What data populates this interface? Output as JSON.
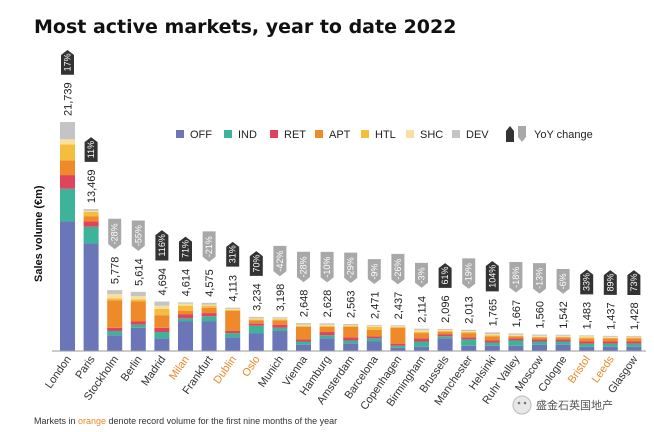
{
  "chart_data": {
    "type": "bar",
    "stacked": true,
    "title": "Most active markets, year to date 2022",
    "ylabel": "Sales volume (€m)",
    "yoy_label": "YoY change",
    "series_keys": [
      "OFF",
      "IND",
      "RET",
      "APT",
      "HTL",
      "SHC",
      "DEV"
    ],
    "series_colors": {
      "OFF": "#6a76b8",
      "IND": "#3db39a",
      "RET": "#e0435c",
      "APT": "#ef8a2b",
      "HTL": "#f5bd3c",
      "SHC": "#f9dfa0",
      "DEV": "#c4c4c4"
    },
    "up_color": "#333333",
    "down_color": "#a8a8a8",
    "record_color": "#e8892a",
    "markets": [
      {
        "name": "London",
        "total": "21,739",
        "value": 21739,
        "yoy": "17%",
        "dir": "up",
        "record": false,
        "breakdown": {
          "OFF": 12300,
          "IND": 3100,
          "RET": 1300,
          "APT": 1400,
          "HTL": 1500,
          "SHC": 500,
          "DEV": 1639
        }
      },
      {
        "name": "Paris",
        "total": "13,469",
        "value": 13469,
        "yoy": "11%",
        "dir": "up",
        "record": false,
        "breakdown": {
          "OFF": 10200,
          "IND": 1600,
          "RET": 500,
          "APT": 500,
          "HTL": 400,
          "SHC": 100,
          "DEV": 169
        }
      },
      {
        "name": "Stockholm",
        "total": "5,778",
        "value": 5778,
        "yoy": "-28%",
        "dir": "down",
        "record": false,
        "breakdown": {
          "OFF": 1500,
          "IND": 400,
          "RET": 300,
          "APT": 2600,
          "HTL": 200,
          "SHC": 400,
          "DEV": 378
        }
      },
      {
        "name": "Berlin",
        "total": "5,614",
        "value": 5614,
        "yoy": "-55%",
        "dir": "down",
        "record": false,
        "breakdown": {
          "OFF": 2200,
          "IND": 300,
          "RET": 300,
          "APT": 1900,
          "HTL": 200,
          "SHC": 300,
          "DEV": 414
        }
      },
      {
        "name": "Madrid",
        "total": "4,694",
        "value": 4694,
        "yoy": "116%",
        "dir": "up",
        "record": false,
        "breakdown": {
          "OFF": 1200,
          "IND": 600,
          "RET": 400,
          "APT": 1200,
          "HTL": 600,
          "SHC": 300,
          "DEV": 394
        }
      },
      {
        "name": "Milan",
        "total": "4,614",
        "value": 4614,
        "yoy": "71%",
        "dir": "up",
        "record": true,
        "breakdown": {
          "OFF": 2800,
          "IND": 300,
          "RET": 400,
          "APT": 300,
          "HTL": 500,
          "SHC": 200,
          "DEV": 114
        }
      },
      {
        "name": "Frankfurt",
        "total": "4,575",
        "value": 4575,
        "yoy": "-21%",
        "dir": "down",
        "record": false,
        "breakdown": {
          "OFF": 2800,
          "IND": 500,
          "RET": 300,
          "APT": 500,
          "HTL": 200,
          "SHC": 100,
          "DEV": 175
        }
      },
      {
        "name": "Dublin",
        "total": "4,113",
        "value": 4113,
        "yoy": "31%",
        "dir": "up",
        "record": true,
        "breakdown": {
          "OFF": 1300,
          "IND": 400,
          "RET": 200,
          "APT": 1900,
          "HTL": 100,
          "SHC": 100,
          "DEV": 113
        }
      },
      {
        "name": "Oslo",
        "total": "3,234",
        "value": 3234,
        "yoy": "70%",
        "dir": "up",
        "record": true,
        "breakdown": {
          "OFF": 1700,
          "IND": 700,
          "RET": 200,
          "APT": 300,
          "HTL": 100,
          "SHC": 100,
          "DEV": 134
        }
      },
      {
        "name": "Munich",
        "total": "3,198",
        "value": 3198,
        "yoy": "-42%",
        "dir": "down",
        "record": false,
        "breakdown": {
          "OFF": 1900,
          "IND": 300,
          "RET": 300,
          "APT": 400,
          "HTL": 100,
          "SHC": 100,
          "DEV": 98
        }
      },
      {
        "name": "Vienna",
        "total": "2,648",
        "value": 2648,
        "yoy": "-28%",
        "dir": "down",
        "record": false,
        "breakdown": {
          "OFF": 600,
          "IND": 300,
          "RET": 200,
          "APT": 1200,
          "HTL": 100,
          "SHC": 100,
          "DEV": 148
        }
      },
      {
        "name": "Hamburg",
        "total": "2,628",
        "value": 2628,
        "yoy": "-10%",
        "dir": "down",
        "record": false,
        "breakdown": {
          "OFF": 1200,
          "IND": 300,
          "RET": 300,
          "APT": 500,
          "HTL": 100,
          "SHC": 100,
          "DEV": 128
        }
      },
      {
        "name": "Amsterdam",
        "total": "2,563",
        "value": 2563,
        "yoy": "-29%",
        "dir": "down",
        "record": false,
        "breakdown": {
          "OFF": 700,
          "IND": 300,
          "RET": 300,
          "APT": 1000,
          "HTL": 100,
          "SHC": 50,
          "DEV": 113
        }
      },
      {
        "name": "Barcelona",
        "total": "2,471",
        "value": 2471,
        "yoy": "-9%",
        "dir": "down",
        "record": false,
        "breakdown": {
          "OFF": 900,
          "IND": 300,
          "RET": 200,
          "APT": 600,
          "HTL": 300,
          "SHC": 100,
          "DEV": 71
        }
      },
      {
        "name": "Copenhagen",
        "total": "2,437",
        "value": 2437,
        "yoy": "-26%",
        "dir": "down",
        "record": false,
        "breakdown": {
          "OFF": 300,
          "IND": 200,
          "RET": 200,
          "APT": 1500,
          "HTL": 100,
          "SHC": 50,
          "DEV": 87
        }
      },
      {
        "name": "Birmingham",
        "total": "2,114",
        "value": 2114,
        "yoy": "-3%",
        "dir": "down",
        "record": false,
        "breakdown": {
          "OFF": 400,
          "IND": 500,
          "RET": 300,
          "APT": 500,
          "HTL": 100,
          "SHC": 200,
          "DEV": 114
        }
      },
      {
        "name": "Brussels",
        "total": "2,096",
        "value": 2096,
        "yoy": "61%",
        "dir": "up",
        "record": false,
        "breakdown": {
          "OFF": 1200,
          "IND": 200,
          "RET": 200,
          "APT": 200,
          "HTL": 100,
          "SHC": 100,
          "DEV": 96
        }
      },
      {
        "name": "Manchester",
        "total": "2,013",
        "value": 2013,
        "yoy": "-19%",
        "dir": "down",
        "record": false,
        "breakdown": {
          "OFF": 500,
          "IND": 600,
          "RET": 200,
          "APT": 400,
          "HTL": 100,
          "SHC": 100,
          "DEV": 113
        }
      },
      {
        "name": "Helsinki",
        "total": "1,765",
        "value": 1765,
        "yoy": "104%",
        "dir": "up",
        "record": false,
        "breakdown": {
          "OFF": 500,
          "IND": 300,
          "RET": 200,
          "APT": 400,
          "HTL": 100,
          "SHC": 100,
          "DEV": 165
        }
      },
      {
        "name": "Ruhr Valley",
        "total": "1,667",
        "value": 1667,
        "yoy": "-18%",
        "dir": "down",
        "record": false,
        "breakdown": {
          "OFF": 500,
          "IND": 500,
          "RET": 200,
          "APT": 200,
          "HTL": 50,
          "SHC": 100,
          "DEV": 117
        }
      },
      {
        "name": "Moscow",
        "total": "1,560",
        "value": 1560,
        "yoy": "-13%",
        "dir": "down",
        "record": false,
        "breakdown": {
          "OFF": 600,
          "IND": 300,
          "RET": 200,
          "APT": 200,
          "HTL": 50,
          "SHC": 100,
          "DEV": 110
        }
      },
      {
        "name": "Cologne",
        "total": "1,542",
        "value": 1542,
        "yoy": "-6%",
        "dir": "down",
        "record": false,
        "breakdown": {
          "OFF": 600,
          "IND": 300,
          "RET": 200,
          "APT": 200,
          "HTL": 50,
          "SHC": 100,
          "DEV": 92
        }
      },
      {
        "name": "Bristol",
        "total": "1,483",
        "value": 1483,
        "yoy": "33%",
        "dir": "up",
        "record": true,
        "breakdown": {
          "OFF": 400,
          "IND": 300,
          "RET": 200,
          "APT": 300,
          "HTL": 100,
          "SHC": 100,
          "DEV": 83
        }
      },
      {
        "name": "Leeds",
        "total": "1,437",
        "value": 1437,
        "yoy": "89%",
        "dir": "up",
        "record": true,
        "breakdown": {
          "OFF": 400,
          "IND": 300,
          "RET": 200,
          "APT": 300,
          "HTL": 50,
          "SHC": 100,
          "DEV": 87
        }
      },
      {
        "name": "Glasgow",
        "total": "1,428",
        "value": 1428,
        "yoy": "73%",
        "dir": "up",
        "record": false,
        "breakdown": {
          "OFF": 400,
          "IND": 300,
          "RET": 200,
          "APT": 300,
          "HTL": 100,
          "SHC": 50,
          "DEV": 78
        }
      }
    ],
    "footnote": {
      "before": "Markets in ",
      "highlight": "orange",
      "after": " denote record volume for the first nine months of the year"
    },
    "watermark": "盛金石英国地产"
  }
}
